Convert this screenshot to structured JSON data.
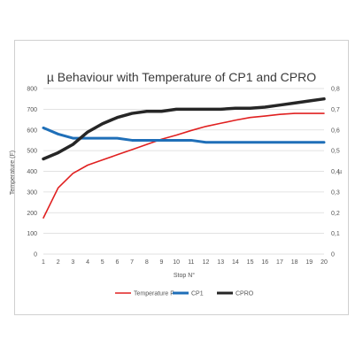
{
  "chart_data": {
    "type": "line",
    "title": "µ Behaviour with Temperature of CP1 and CPRO",
    "xlabel": "Stop N°",
    "ylabel": "Temperature (F)",
    "y2label": "µ",
    "x": [
      1,
      2,
      3,
      4,
      5,
      6,
      7,
      8,
      9,
      10,
      11,
      12,
      13,
      14,
      15,
      16,
      17,
      18,
      19,
      20
    ],
    "ylim": [
      0,
      800
    ],
    "yticks": [
      0,
      100,
      200,
      300,
      400,
      500,
      600,
      700,
      800
    ],
    "y2lim": [
      0,
      0.8
    ],
    "y2ticks": [
      "0",
      "0,1",
      "0,2",
      "0,3",
      "0,4",
      "0,5",
      "0,6",
      "0,7",
      "0,8"
    ],
    "grid": true,
    "legend_position": "bottom",
    "series": [
      {
        "name": "Temperature F",
        "axis": "left",
        "color": "#e02020",
        "values": [
          175,
          320,
          390,
          430,
          455,
          480,
          505,
          530,
          555,
          575,
          597,
          617,
          632,
          647,
          660,
          667,
          675,
          680,
          680,
          680
        ]
      },
      {
        "name": "CP1",
        "axis": "right",
        "color": "#1f6fb8",
        "values": [
          0.61,
          0.58,
          0.56,
          0.56,
          0.56,
          0.56,
          0.55,
          0.55,
          0.55,
          0.55,
          0.55,
          0.54,
          0.54,
          0.54,
          0.54,
          0.54,
          0.54,
          0.54,
          0.54,
          0.54
        ]
      },
      {
        "name": "CPRO",
        "axis": "right",
        "color": "#262626",
        "values": [
          0.46,
          0.49,
          0.53,
          0.59,
          0.63,
          0.66,
          0.68,
          0.69,
          0.69,
          0.7,
          0.7,
          0.7,
          0.7,
          0.705,
          0.705,
          0.71,
          0.72,
          0.73,
          0.74,
          0.75
        ]
      }
    ]
  }
}
